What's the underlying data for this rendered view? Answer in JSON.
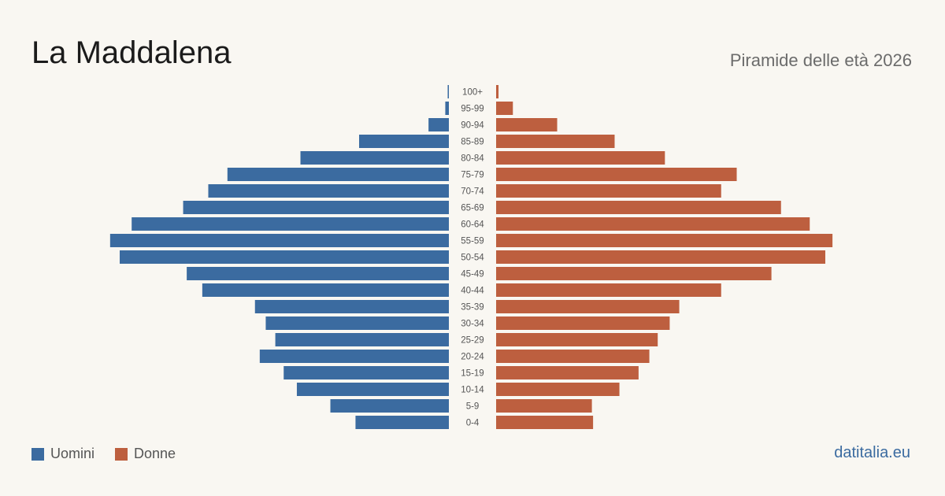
{
  "header": {
    "title": "La Maddalena",
    "subtitle": "Piramide delle età 2026"
  },
  "legend": {
    "men_label": "Uomini",
    "women_label": "Donne"
  },
  "footer": {
    "brand": "datitalia.eu"
  },
  "colors": {
    "men": "#3b6ba0",
    "women": "#bd5f3f",
    "background": "#f9f7f2",
    "label": "#555555"
  },
  "chart_data": {
    "type": "bar",
    "orientation": "horizontal-population-pyramid",
    "title": "La Maddalena",
    "subtitle": "Piramide delle età 2026",
    "categories": [
      "100+",
      "95-99",
      "90-94",
      "85-89",
      "80-84",
      "75-79",
      "70-74",
      "65-69",
      "60-64",
      "55-59",
      "50-54",
      "45-49",
      "40-44",
      "35-39",
      "30-34",
      "25-29",
      "20-24",
      "15-19",
      "10-14",
      "5-9",
      "0-4"
    ],
    "series": [
      {
        "name": "Uomini",
        "color": "#3b6ba0",
        "values": [
          1,
          3,
          17,
          75,
          124,
          185,
          201,
          222,
          265,
          283,
          275,
          219,
          206,
          162,
          153,
          145,
          158,
          138,
          127,
          99,
          78
        ]
      },
      {
        "name": "Donne",
        "color": "#bd5f3f",
        "values": [
          2,
          14,
          51,
          99,
          141,
          201,
          188,
          238,
          262,
          281,
          275,
          230,
          188,
          153,
          145,
          135,
          128,
          119,
          103,
          80,
          81
        ]
      }
    ],
    "xlabel": "",
    "ylabel": "",
    "legend_position": "bottom-left",
    "grid": false
  }
}
